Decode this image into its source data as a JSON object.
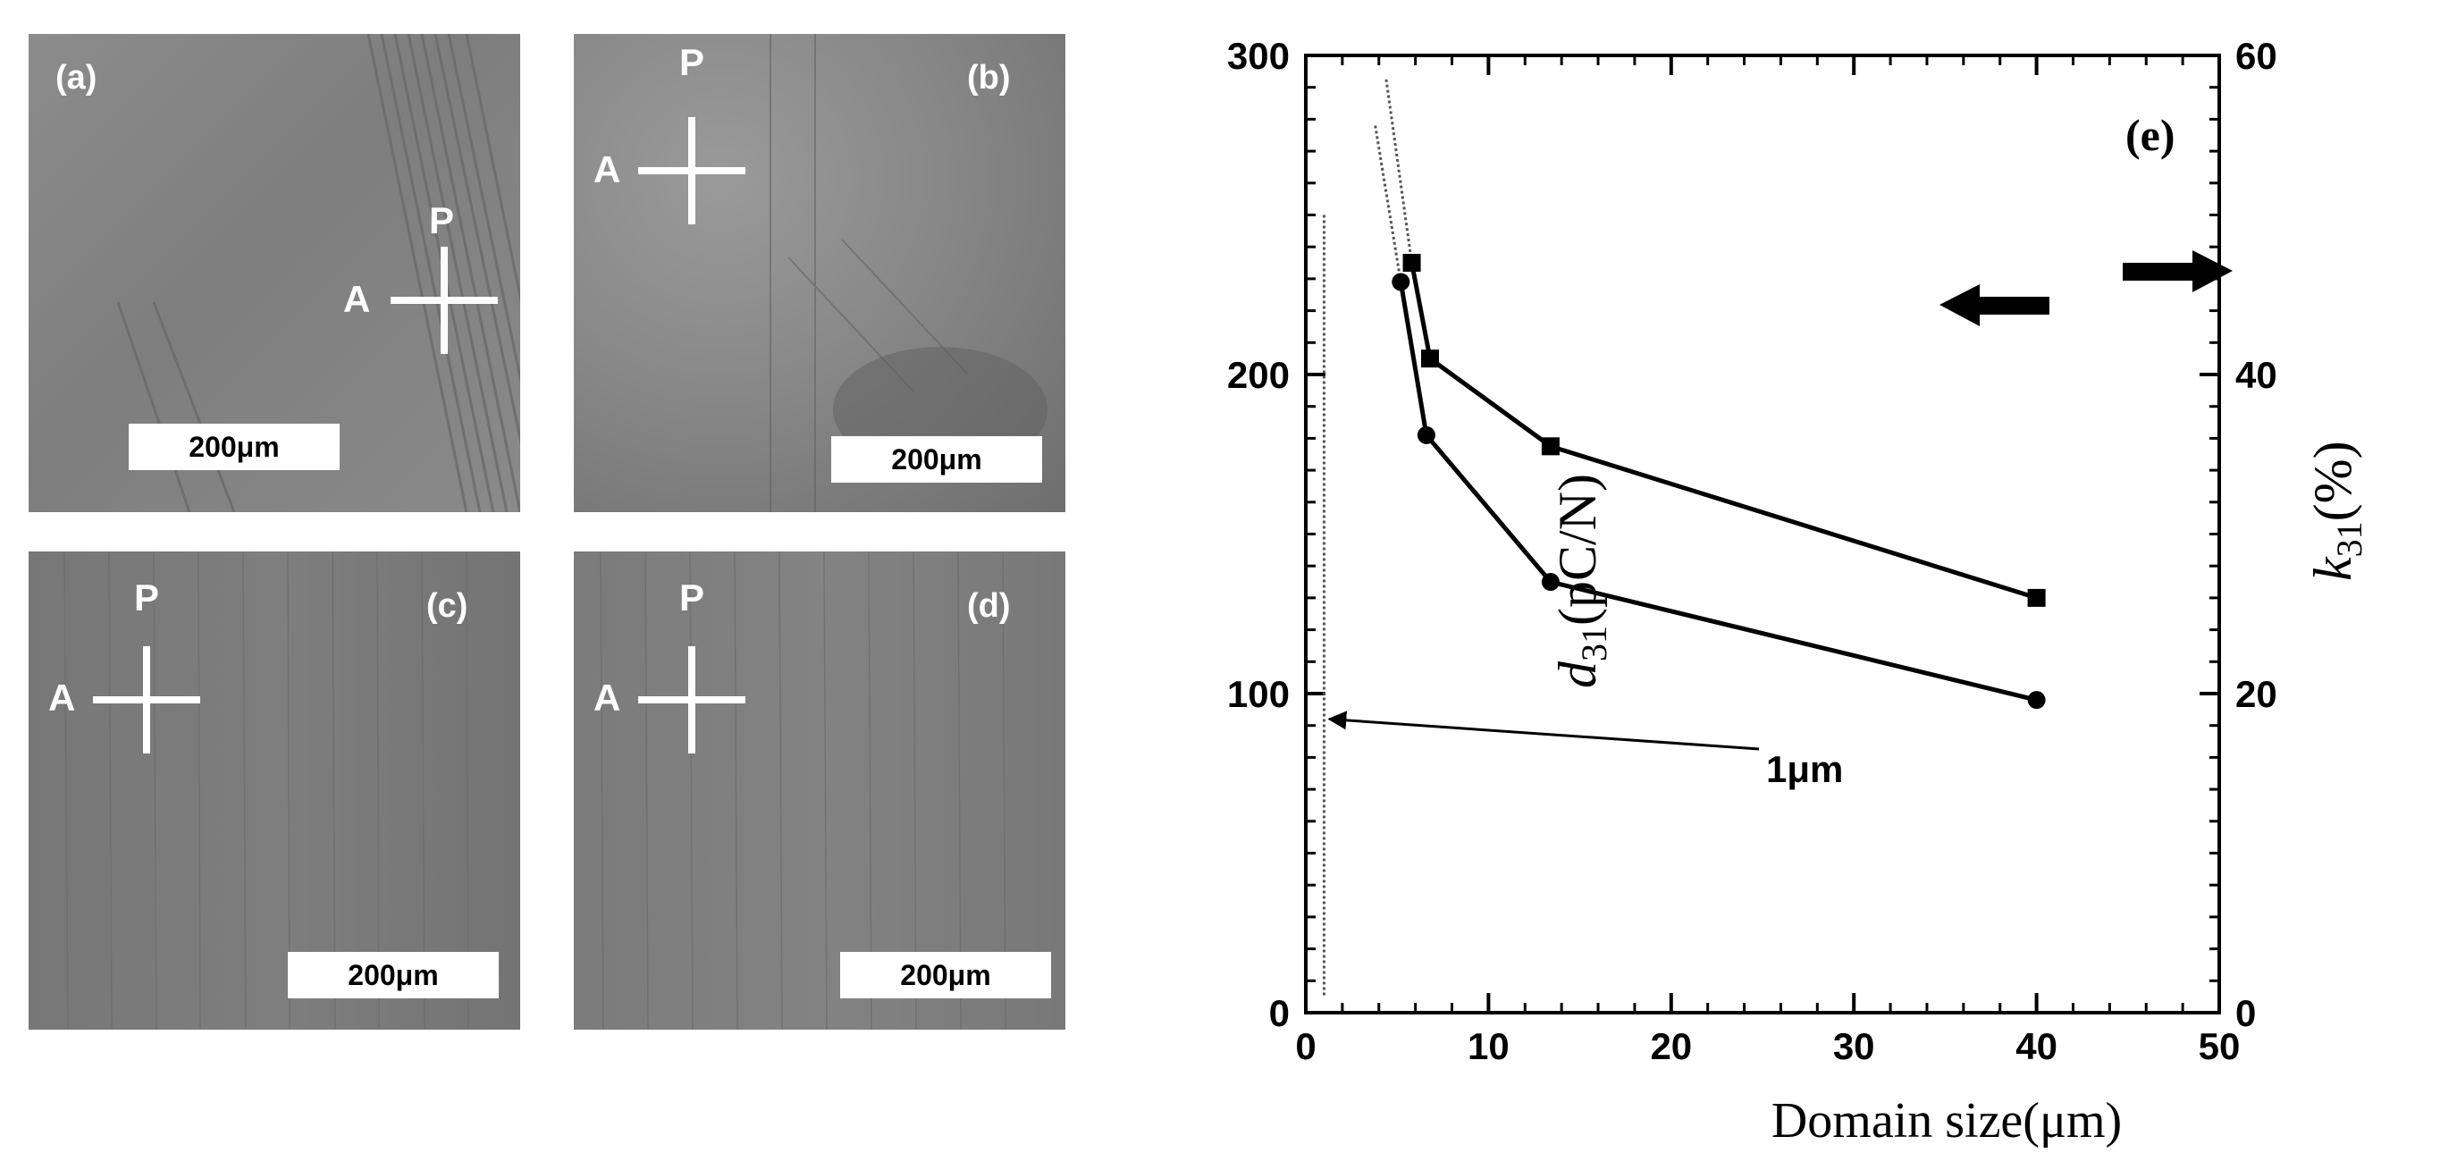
{
  "panels": [
    {
      "id": "a",
      "label": "(a)",
      "scale": "200μm",
      "polarizer": "P",
      "analyzer": "A"
    },
    {
      "id": "b",
      "label": "(b)",
      "scale": "200μm",
      "polarizer": "P",
      "analyzer": "A"
    },
    {
      "id": "c",
      "label": "(c)",
      "scale": "200μm",
      "polarizer": "P",
      "analyzer": "A"
    },
    {
      "id": "d",
      "label": "(d)",
      "scale": "200μm",
      "polarizer": "P",
      "analyzer": "A"
    }
  ],
  "chart_data": {
    "type": "line",
    "panel_label": "(e)",
    "xlabel": "Domain size(μm)",
    "ylabel_left_main": "d",
    "ylabel_left_sub": "31",
    "ylabel_left_unit": "(pC/N)",
    "ylabel_right_main": "k",
    "ylabel_right_sub": "31",
    "ylabel_right_unit": "(%)",
    "xlim": [
      0,
      50
    ],
    "ylim_left": [
      0,
      300
    ],
    "ylim_right": [
      0,
      60
    ],
    "x_ticks": [
      "0",
      "10",
      "20",
      "30",
      "40",
      "50"
    ],
    "y_left_ticks": [
      "0",
      "100",
      "200",
      "300"
    ],
    "y_right_ticks": [
      "0",
      "20",
      "40",
      "60"
    ],
    "grid": false,
    "series": [
      {
        "axis": "left",
        "marker": "circle",
        "x": [
          5.2,
          6.6,
          13.4,
          40
        ],
        "y": [
          229,
          181,
          135,
          98
        ]
      },
      {
        "axis": "right",
        "marker": "square",
        "x": [
          5.8,
          6.8,
          13.4,
          40
        ],
        "y": [
          47,
          41,
          35.5,
          26
        ]
      }
    ],
    "annotations": [
      {
        "text": "1μm",
        "x": 1,
        "y": 92
      }
    ]
  }
}
